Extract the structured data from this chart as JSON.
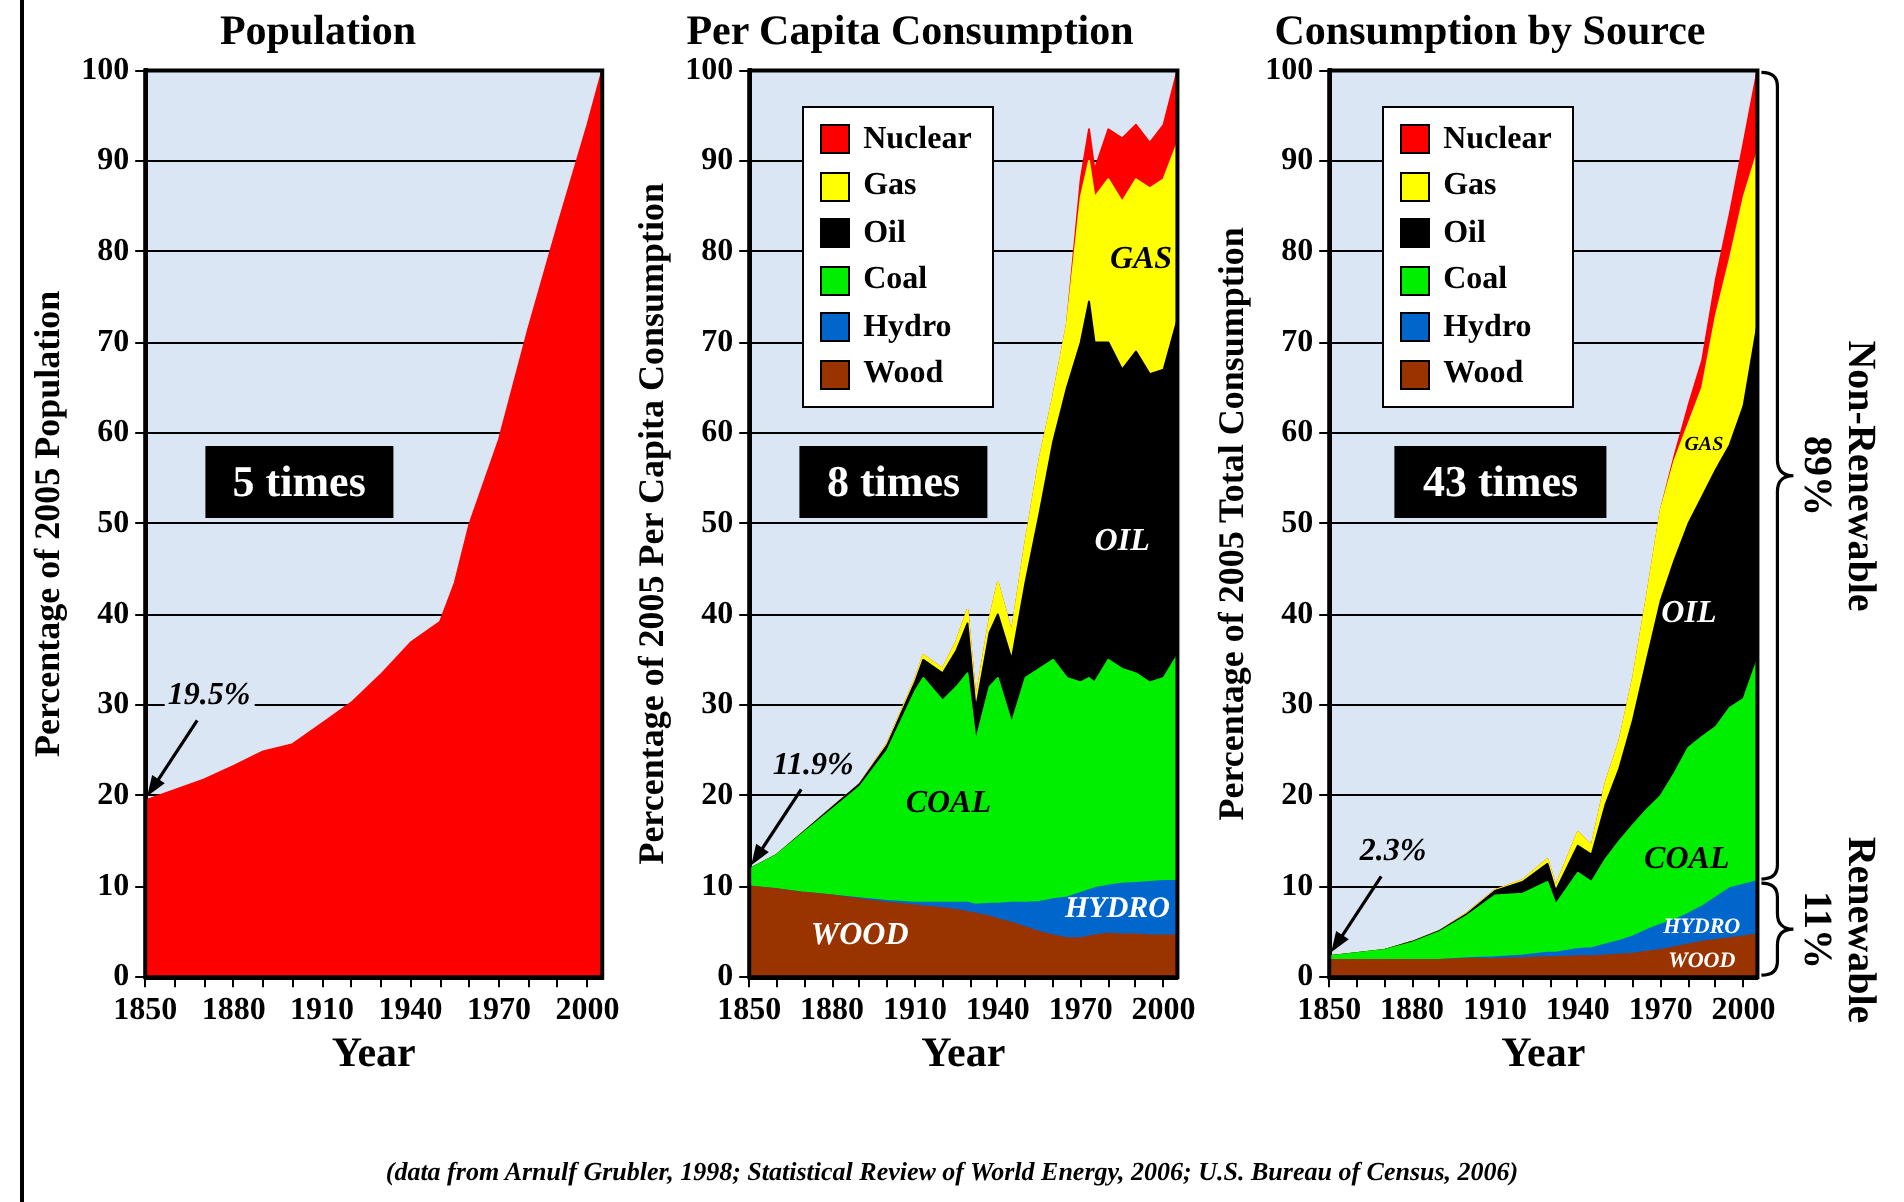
{
  "chart_data": [
    {
      "type": "area",
      "title": "Population",
      "xlabel": "Year",
      "ylabel": "Percentage of 2005 Population",
      "x": [
        1850,
        1870,
        1880,
        1890,
        1900,
        1910,
        1920,
        1930,
        1940,
        1950,
        1955,
        1960,
        1970,
        1980,
        1990,
        2000,
        2005
      ],
      "values": [
        19.5,
        21.8,
        23.3,
        24.9,
        25.7,
        28,
        30.3,
        33.4,
        36.9,
        39.2,
        43.5,
        50,
        59.3,
        71.6,
        83,
        94,
        100
      ],
      "color": "#ff0000",
      "xlim": [
        1850,
        2005
      ],
      "xticks": [
        1850,
        {
          "value": 1860,
          "label": null
        },
        {
          "value": 1870,
          "label": null
        },
        1880,
        {
          "value": 1890,
          "label": null
        },
        {
          "value": 1900,
          "label": null
        },
        1910,
        {
          "value": 1920,
          "label": null
        },
        {
          "value": 1930,
          "label": null
        },
        1940,
        {
          "value": 1950,
          "label": null
        },
        {
          "value": 1960,
          "label": null
        },
        1970,
        {
          "value": 1980,
          "label": null
        },
        {
          "value": 1990,
          "label": null
        },
        2000
      ],
      "ylim": [
        0,
        100
      ],
      "yticks": [
        0,
        10,
        20,
        30,
        40,
        50,
        60,
        70,
        80,
        90,
        100
      ],
      "grid": "y",
      "legend": false,
      "annotations": [
        "19.5%",
        "5 times",
        "(data from Arnulf Grubler, 1998; Statistical Review of World Energy, 2006; U.S. Bureau of Census, 2006)"
      ]
    },
    {
      "type": "area",
      "title": "Per Capita Consumption",
      "xlabel": "Year",
      "ylabel": "Percentage of 2005 Per Capita Consumption",
      "stacked": true,
      "x": [
        1850,
        1860,
        1870,
        1880,
        1890,
        1900,
        1910,
        1913,
        1920,
        1925,
        1929,
        1932,
        1937,
        1940,
        1945,
        1950,
        1955,
        1960,
        1965,
        1970,
        1973,
        1975,
        1980,
        1985,
        1990,
        1995,
        2000,
        2005
      ],
      "series": [
        {
          "name": "Wood",
          "color": "#993300",
          "values": [
            10,
            9.7,
            9.3,
            9,
            8.6,
            8.2,
            7.9,
            7.8,
            7.6,
            7.4,
            7.2,
            7,
            6.7,
            6.4,
            6,
            5.5,
            5,
            4.6,
            4.3,
            4.3,
            4.5,
            4.6,
            4.8,
            4.7,
            4.7,
            4.6,
            4.6,
            4.6
          ]
        },
        {
          "name": "Hydro",
          "color": "#0066cc",
          "values": [
            0,
            0,
            0,
            0,
            0.1,
            0.2,
            0.3,
            0.4,
            0.6,
            0.8,
            1,
            1,
            1.4,
            1.7,
            2.2,
            2.7,
            3.3,
            4,
            4.5,
            5,
            5.1,
            5.2,
            5.3,
            5.6,
            5.7,
            5.9,
            6,
            6
          ]
        },
        {
          "name": "Coal",
          "color": "#00ee00",
          "values": [
            1.9,
            3.8,
            6.7,
            9.5,
            12.3,
            16.6,
            23.3,
            24.8,
            22.3,
            23.8,
            25.3,
            18,
            23.9,
            24.9,
            19.8,
            24.8,
            25.7,
            26.4,
            24.2,
            23.2,
            23.4,
            22.7,
            24.9,
            23.7,
            23.1,
            22,
            22.4,
            24.9
          ]
        },
        {
          "name": "Oil",
          "color": "#000000",
          "values": [
            0,
            0,
            0.1,
            0.2,
            0.3,
            0.6,
            1,
            2,
            3,
            4,
            5.5,
            3.5,
            6,
            7,
            7,
            10.5,
            17,
            24,
            32,
            37.5,
            41.5,
            37.5,
            35,
            33,
            35.5,
            34,
            34,
            37
          ]
        },
        {
          "name": "Gas",
          "color": "#ffff00",
          "values": [
            0,
            0,
            0,
            0,
            0,
            0.2,
            0.3,
            0.5,
            0.5,
            1,
            1.5,
            1,
            1.5,
            3.5,
            3,
            4.5,
            6,
            5,
            7,
            16,
            15.5,
            16,
            18,
            18.5,
            19,
            20.5,
            21,
            19.5
          ]
        },
        {
          "name": "Nuclear",
          "color": "#ff0000",
          "values": [
            0,
            0,
            0,
            0,
            0,
            0,
            0,
            0,
            0,
            0,
            0,
            0,
            0,
            0,
            0,
            0,
            0,
            0,
            0,
            2,
            3.5,
            3,
            5.5,
            7,
            6,
            5,
            6,
            8
          ]
        }
      ],
      "xlim": [
        1850,
        2005
      ],
      "xticks": [
        1850,
        {
          "value": 1860,
          "label": null
        },
        {
          "value": 1870,
          "label": null
        },
        1880,
        {
          "value": 1890,
          "label": null
        },
        {
          "value": 1900,
          "label": null
        },
        1910,
        {
          "value": 1920,
          "label": null
        },
        {
          "value": 1930,
          "label": null
        },
        1940,
        {
          "value": 1950,
          "label": null
        },
        {
          "value": 1960,
          "label": null
        },
        1970,
        {
          "value": 1980,
          "label": null
        },
        {
          "value": 1990,
          "label": null
        },
        2000
      ],
      "ylim": [
        0,
        100
      ],
      "yticks": [
        0,
        10,
        20,
        30,
        40,
        50,
        60,
        70,
        80,
        90,
        100
      ],
      "grid": "y",
      "legend": "top left",
      "annotations": [
        "11.9%",
        "8 times",
        "WOOD",
        "HYDRO",
        "COAL",
        "OIL",
        "GAS"
      ]
    },
    {
      "type": "area",
      "title": "Consumption by Source",
      "xlabel": "Year",
      "ylabel": "Percentage of 2005 Total Consumption",
      "stacked": true,
      "x": [
        1850,
        1870,
        1880,
        1890,
        1900,
        1910,
        1920,
        1929,
        1932,
        1940,
        1945,
        1950,
        1955,
        1960,
        1965,
        1970,
        1975,
        1980,
        1985,
        1990,
        1995,
        2000,
        2005
      ],
      "series": [
        {
          "name": "Wood",
          "color": "#993300",
          "values": [
            1.9,
            1.9,
            1.9,
            1.9,
            2,
            2,
            2.1,
            2.2,
            2.2,
            2.3,
            2.3,
            2.4,
            2.5,
            2.6,
            2.8,
            3,
            3.3,
            3.6,
            3.9,
            4.1,
            4.3,
            4.5,
            4.7
          ]
        },
        {
          "name": "Hydro",
          "color": "#0066cc",
          "values": [
            0,
            0,
            0,
            0,
            0.1,
            0.2,
            0.3,
            0.5,
            0.5,
            0.8,
            0.9,
            1.2,
            1.5,
            1.9,
            2.4,
            2.8,
            3,
            3.4,
            3.9,
            4.7,
            5.5,
            5.7,
            5.9
          ]
        },
        {
          "name": "Coal",
          "color": "#00ee00",
          "values": [
            0.4,
            1.1,
            1.9,
            3.1,
            4.7,
            6.8,
            6.8,
            7.8,
            5.3,
            8.4,
            7.3,
            9.4,
            11,
            12.3,
            13.3,
            14.2,
            16.2,
            18.3,
            18.7,
            18.8,
            19.9,
            20.5,
            24.4
          ]
        },
        {
          "name": "Oil",
          "color": "#000000",
          "values": [
            0,
            0,
            0.1,
            0.1,
            0.2,
            0.5,
            1.3,
            2,
            1.5,
            3,
            3,
            6,
            8,
            11.6,
            16.5,
            21.5,
            23.5,
            24.7,
            26.5,
            28.4,
            29,
            32.3,
            37
          ]
        },
        {
          "name": "Gas",
          "color": "#ffff00",
          "values": [
            0,
            0,
            0,
            0,
            0.1,
            0.1,
            0.2,
            0.5,
            0.5,
            1.5,
            1,
            2.4,
            3,
            4.6,
            7,
            10,
            11,
            11,
            12,
            17,
            20.5,
            23,
            19
          ]
        },
        {
          "name": "Nuclear",
          "color": "#ff0000",
          "values": [
            0,
            0,
            0,
            0,
            0,
            0,
            0,
            0,
            0,
            0,
            0,
            0,
            0,
            0,
            0,
            0,
            0.5,
            2,
            3,
            4,
            5,
            6,
            9
          ]
        }
      ],
      "xlim": [
        1850,
        2005
      ],
      "xticks": [
        1850,
        {
          "value": 1860,
          "label": null
        },
        {
          "value": 1870,
          "label": null
        },
        1880,
        {
          "value": 1890,
          "label": null
        },
        {
          "value": 1900,
          "label": null
        },
        1910,
        {
          "value": 1920,
          "label": null
        },
        {
          "value": 1930,
          "label": null
        },
        1940,
        {
          "value": 1950,
          "label": null
        },
        {
          "value": 1960,
          "label": null
        },
        1970,
        {
          "value": 1980,
          "label": null
        },
        {
          "value": 1990,
          "label": null
        },
        2000
      ],
      "ylim": [
        0,
        100
      ],
      "yticks": [
        0,
        10,
        20,
        30,
        40,
        50,
        60,
        70,
        80,
        90,
        100
      ],
      "grid": "y",
      "legend": "top left",
      "annotations": [
        "2.3%",
        "43 times",
        "WOOD",
        "HYDRO",
        "COAL",
        "OIL",
        "GAS",
        "89%",
        "Non-Renewable",
        "11%",
        "Renewable"
      ]
    }
  ]
}
